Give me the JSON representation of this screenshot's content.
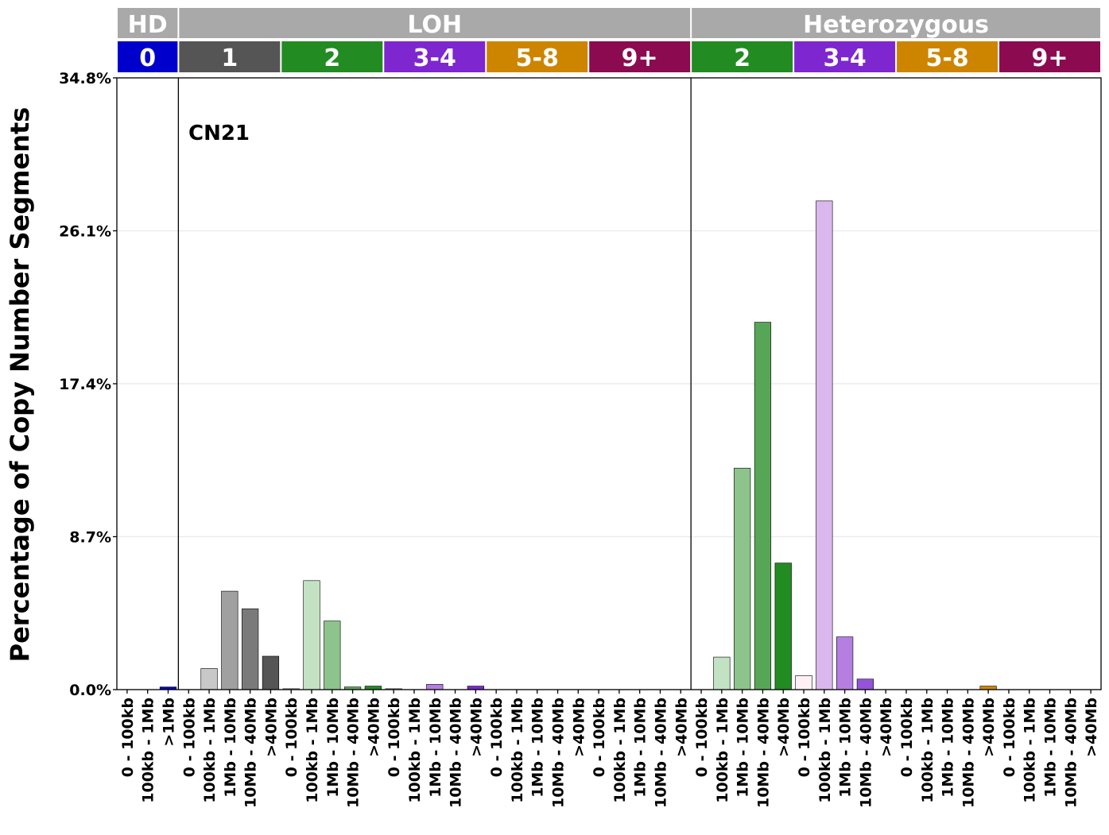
{
  "chart_data": {
    "type": "bar",
    "ylabel": "Percentage of Copy Number Segments",
    "annotation": "CN21",
    "yticks": [
      "0.0%",
      "8.7%",
      "17.4%",
      "26.1%",
      "34.8%"
    ],
    "ylim": [
      0,
      34.8
    ],
    "grid": true,
    "groups": [
      {
        "label": "HD",
        "color": "#a9a9a9"
      },
      {
        "label": "LOH",
        "color": "#a9a9a9"
      },
      {
        "label": "Heterozygous",
        "color": "#a9a9a9"
      }
    ],
    "subgroups": [
      {
        "label": "0",
        "color": "#0000cd",
        "group": "HD"
      },
      {
        "label": "1",
        "color": "#555555",
        "group": "LOH"
      },
      {
        "label": "2",
        "color": "#228b22",
        "group": "LOH"
      },
      {
        "label": "3-4",
        "color": "#7e26d0",
        "group": "LOH"
      },
      {
        "label": "5-8",
        "color": "#cd8500",
        "group": "LOH"
      },
      {
        "label": "9+",
        "color": "#8b0a50",
        "group": "LOH"
      },
      {
        "label": "2",
        "color": "#228b22",
        "group": "Heterozygous"
      },
      {
        "label": "3-4",
        "color": "#7e26d0",
        "group": "Heterozygous"
      },
      {
        "label": "5-8",
        "color": "#cd8500",
        "group": "Heterozygous"
      },
      {
        "label": "9+",
        "color": "#8b0a50",
        "group": "Heterozygous"
      }
    ],
    "categories": [
      "0 - 100kb",
      "100kb - 1Mb",
      ">1Mb",
      "0 - 100kb",
      "100kb - 1Mb",
      "1Mb - 10Mb",
      "10Mb - 40Mb",
      ">40Mb",
      "0 - 100kb",
      "100kb - 1Mb",
      "1Mb - 10Mb",
      "10Mb - 40Mb",
      ">40Mb",
      "0 - 100kb",
      "100kb - 1Mb",
      "1Mb - 10Mb",
      "10Mb - 40Mb",
      ">40Mb",
      "0 - 100kb",
      "100kb - 1Mb",
      "1Mb - 10Mb",
      "10Mb - 40Mb",
      ">40Mb",
      "0 - 100kb",
      "100kb - 1Mb",
      "1Mb - 10Mb",
      "10Mb - 40Mb",
      ">40Mb",
      "0 - 100kb",
      "100kb - 1Mb",
      "1Mb - 10Mb",
      "10Mb - 40Mb",
      ">40Mb",
      "0 - 100kb",
      "100kb - 1Mb",
      "1Mb - 10Mb",
      "10Mb - 40Mb",
      ">40Mb",
      "0 - 100kb",
      "100kb - 1Mb",
      "1Mb - 10Mb",
      "10Mb - 40Mb",
      ">40Mb",
      "0 - 100kb",
      "100kb - 1Mb",
      "1Mb - 10Mb",
      "10Mb - 40Mb",
      ">40Mb"
    ],
    "values": [
      0,
      0,
      0.15,
      0,
      1.2,
      5.6,
      4.6,
      1.9,
      0.05,
      6.2,
      3.9,
      0.15,
      0.2,
      0.05,
      0,
      0.3,
      0,
      0.2,
      0,
      0,
      0,
      0,
      0,
      0,
      0,
      0,
      0,
      0,
      0,
      1.85,
      12.6,
      20.9,
      7.2,
      0.8,
      27.8,
      3.0,
      0.6,
      0,
      0,
      0,
      0,
      0,
      0.2,
      0,
      0,
      0,
      0,
      0
    ],
    "colors": [
      "#0000cd",
      "#0000cd",
      "#0000cd",
      "#c8c8c8",
      "#c8c8c8",
      "#a0a0a0",
      "#7a7a7a",
      "#555555",
      "#c3e2c3",
      "#c3e2c3",
      "#8cc48c",
      "#57a657",
      "#228b22",
      "#dab7ec",
      "#dab7ec",
      "#b47fe1",
      "#9453d8",
      "#7e26d0",
      "#f0d9b0",
      "#f0d9b0",
      "#e6bc6b",
      "#d9a035",
      "#cd8500",
      "#e5a9c8",
      "#e5a9c8",
      "#c66a97",
      "#a83a73",
      "#8b0a50",
      "#c3e2c3",
      "#c3e2c3",
      "#8cc48c",
      "#57a657",
      "#228b22",
      "#fff0f5",
      "#dab7ec",
      "#b47fe1",
      "#9453d8",
      "#7e26d0",
      "#f0d9b0",
      "#f0d9b0",
      "#e6bc6b",
      "#d9a035",
      "#cd8500",
      "#e5a9c8",
      "#e5a9c8",
      "#c66a97",
      "#a83a73",
      "#8b0a50"
    ]
  }
}
